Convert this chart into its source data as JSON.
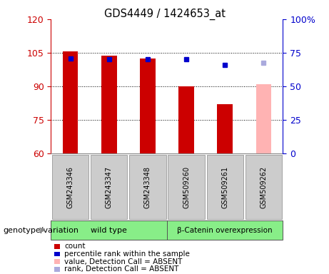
{
  "title": "GDS4449 / 1424653_at",
  "samples": [
    "GSM243346",
    "GSM243347",
    "GSM243348",
    "GSM509260",
    "GSM509261",
    "GSM509262"
  ],
  "bar_values": [
    105.5,
    103.8,
    102.5,
    90.0,
    82.0,
    null
  ],
  "absent_bar_value": 91.0,
  "absent_bar_color": "#ffb3b3",
  "dot_values": [
    102.5,
    102.0,
    102.0,
    102.0,
    99.5,
    null
  ],
  "absent_dot_value": 100.5,
  "absent_dot_color": "#aaaadd",
  "ylim": [
    60,
    120
  ],
  "yticks": [
    60,
    75,
    90,
    105,
    120
  ],
  "y2lim": [
    0,
    100
  ],
  "y2ticks": [
    0,
    25,
    50,
    75,
    100
  ],
  "y2labels": [
    "0",
    "25",
    "50",
    "75",
    "100%"
  ],
  "ycolor": "#cc0000",
  "y2color": "#0000cc",
  "bar_color": "#cc0000",
  "dot_color": "#0000cc",
  "legend_items": [
    {
      "label": "count",
      "color": "#cc0000"
    },
    {
      "label": "percentile rank within the sample",
      "color": "#0000cc"
    },
    {
      "label": "value, Detection Call = ABSENT",
      "color": "#ffb3b3"
    },
    {
      "label": "rank, Detection Call = ABSENT",
      "color": "#aaaadd"
    }
  ],
  "genotype_label": "genotype/variation",
  "wildtype_label": "wild type",
  "betacat_label": "β-Catenin overexpression",
  "wildtype_bg": "#88ee88",
  "betacat_bg": "#88ee88",
  "sample_bg": "#cccccc",
  "plot_bg": "#ffffff"
}
